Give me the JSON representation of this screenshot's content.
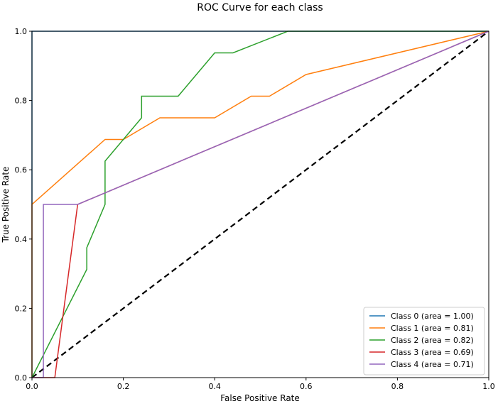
{
  "chart_data": {
    "type": "line",
    "title": "ROC Curve for each class",
    "xlabel": "False Positive Rate",
    "ylabel": "True Positive Rate",
    "xlim": [
      0,
      1
    ],
    "ylim": [
      0,
      1
    ],
    "xticks": [
      "0.0",
      "0.2",
      "0.4",
      "0.6",
      "0.8",
      "1.0"
    ],
    "yticks": [
      "0.0",
      "0.2",
      "0.4",
      "0.6",
      "0.8",
      "1.0"
    ],
    "xtick_values": [
      0,
      0.2,
      0.4,
      0.6,
      0.8,
      1.0
    ],
    "ytick_values": [
      0,
      0.2,
      0.4,
      0.6,
      0.8,
      1.0
    ],
    "grid": false,
    "legend_position": "bottom-right",
    "series": [
      {
        "name": "Class 0 (area = 1.00)",
        "color": "#1f77b4",
        "x": [
          0,
          0,
          1
        ],
        "y": [
          0,
          1,
          1
        ]
      },
      {
        "name": "Class 1 (area = 0.81)",
        "color": "#ff7f0e",
        "x": [
          0,
          0,
          0.16,
          0.2,
          0.28,
          0.4,
          0.48,
          0.52,
          0.6,
          1
        ],
        "y": [
          0,
          0.5,
          0.6875,
          0.6875,
          0.75,
          0.75,
          0.8125,
          0.8125,
          0.875,
          1
        ]
      },
      {
        "name": "Class 2 (area = 0.82)",
        "color": "#2ca02c",
        "x": [
          0,
          0.12,
          0.12,
          0.16,
          0.16,
          0.24,
          0.24,
          0.32,
          0.4,
          0.44,
          0.56,
          1
        ],
        "y": [
          0,
          0.3125,
          0.375,
          0.5,
          0.625,
          0.75,
          0.8125,
          0.8125,
          0.9375,
          0.9375,
          1,
          1
        ]
      },
      {
        "name": "Class 3 (area = 0.69)",
        "color": "#d62728",
        "x": [
          0,
          0.05,
          0.1,
          1
        ],
        "y": [
          0,
          0,
          0.5,
          1
        ]
      },
      {
        "name": "Class 4 (area = 0.71)",
        "color": "#9467bd",
        "x": [
          0,
          0.025,
          0.025,
          0.1,
          1
        ],
        "y": [
          0,
          0,
          0.5,
          0.5,
          1
        ]
      }
    ],
    "reference_line": {
      "x": [
        0,
        1
      ],
      "y": [
        0,
        1
      ],
      "color": "#000000",
      "style": "dashed"
    }
  }
}
